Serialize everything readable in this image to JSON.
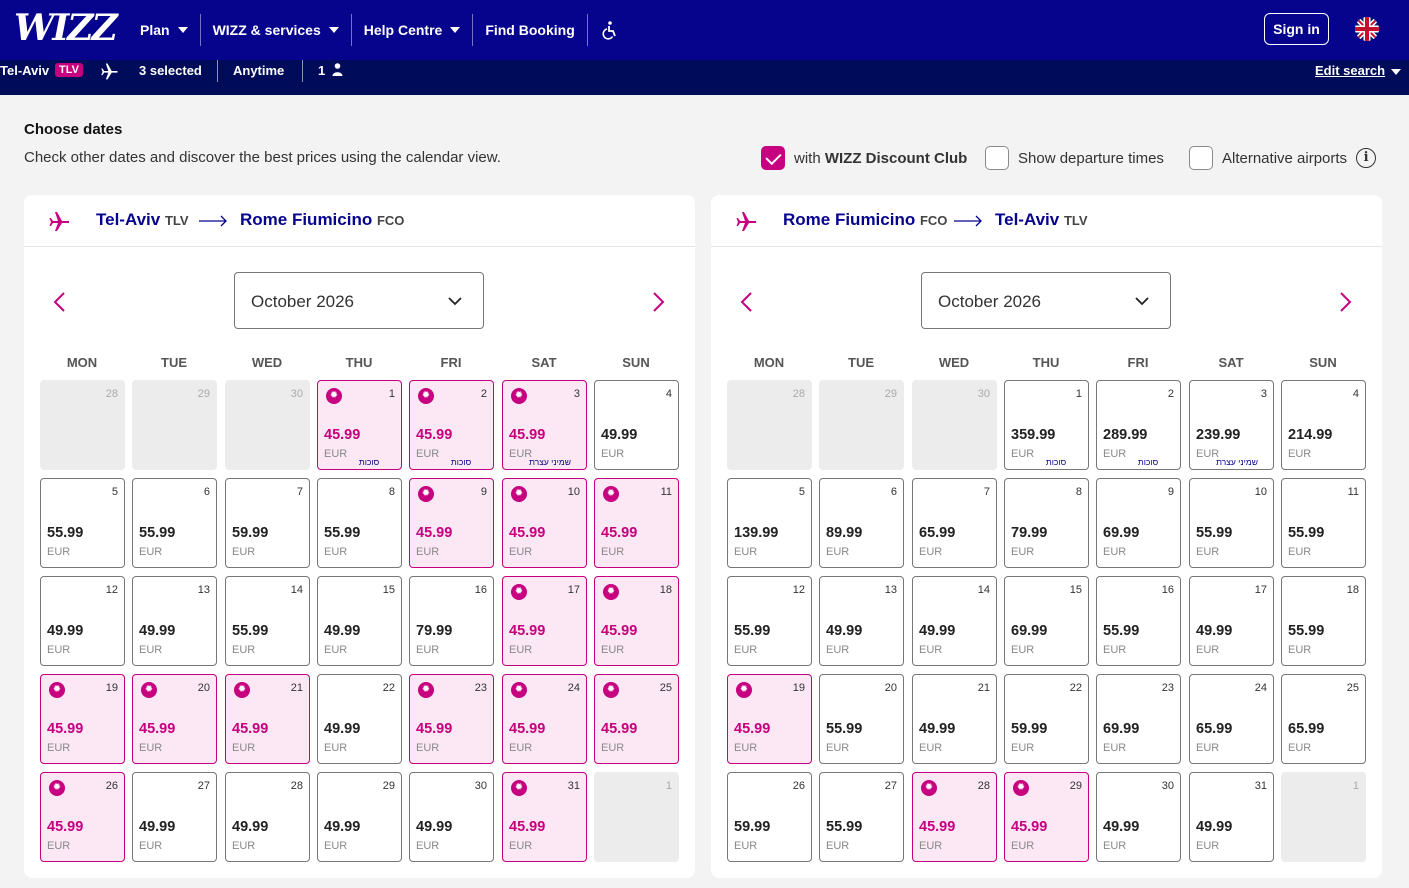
{
  "header": {
    "logo_text": "WIZZ",
    "nav": [
      {
        "label": "Plan",
        "dropdown": true
      },
      {
        "label": "WIZZ & services",
        "dropdown": true
      },
      {
        "label": "Help Centre",
        "dropdown": true
      },
      {
        "label": "Find Booking",
        "dropdown": false
      }
    ],
    "accessibility_icon": "accessibility-icon",
    "sign_in": "Sign in",
    "language_icon": "uk-flag-icon"
  },
  "search_summary": {
    "origin": "Tel-Aviv",
    "origin_code": "TLV",
    "destinations": "3 selected",
    "dates": "Anytime",
    "passengers": "1",
    "edit": "Edit search"
  },
  "choose": {
    "title": "Choose dates",
    "subtitle": "Check other dates and discover the best prices using the calendar view.",
    "options": [
      {
        "label_prefix": "with ",
        "label_strong": "WIZZ Discount Club",
        "checked": true
      },
      {
        "label_prefix": "Show departure times",
        "label_strong": "",
        "checked": false
      },
      {
        "label_prefix": "Alternative airports",
        "label_strong": "",
        "checked": false
      }
    ]
  },
  "weekdays": [
    "MON",
    "TUE",
    "WED",
    "THU",
    "FRI",
    "SAT",
    "SUN"
  ],
  "panels": [
    {
      "from": "Tel-Aviv",
      "from_code": "TLV",
      "to": "Rome Fiumicino",
      "to_code": "FCO",
      "month": "October 2026",
      "currency": "EUR",
      "cells": [
        {
          "d": "28",
          "empty": true
        },
        {
          "d": "29",
          "empty": true
        },
        {
          "d": "30",
          "empty": true
        },
        {
          "d": "1",
          "p": "45.99",
          "club": true,
          "note": "סוכות"
        },
        {
          "d": "2",
          "p": "45.99",
          "club": true,
          "note": "סוכות"
        },
        {
          "d": "3",
          "p": "45.99",
          "club": true,
          "note": "שמיני עצרת"
        },
        {
          "d": "4",
          "p": "49.99"
        },
        {
          "d": "5",
          "p": "55.99"
        },
        {
          "d": "6",
          "p": "55.99"
        },
        {
          "d": "7",
          "p": "59.99"
        },
        {
          "d": "8",
          "p": "55.99"
        },
        {
          "d": "9",
          "p": "45.99",
          "club": true
        },
        {
          "d": "10",
          "p": "45.99",
          "club": true
        },
        {
          "d": "11",
          "p": "45.99",
          "club": true
        },
        {
          "d": "12",
          "p": "49.99"
        },
        {
          "d": "13",
          "p": "49.99"
        },
        {
          "d": "14",
          "p": "55.99"
        },
        {
          "d": "15",
          "p": "49.99"
        },
        {
          "d": "16",
          "p": "79.99"
        },
        {
          "d": "17",
          "p": "45.99",
          "club": true
        },
        {
          "d": "18",
          "p": "45.99",
          "club": true
        },
        {
          "d": "19",
          "p": "45.99",
          "club": true
        },
        {
          "d": "20",
          "p": "45.99",
          "club": true
        },
        {
          "d": "21",
          "p": "45.99",
          "club": true
        },
        {
          "d": "22",
          "p": "49.99"
        },
        {
          "d": "23",
          "p": "45.99",
          "club": true
        },
        {
          "d": "24",
          "p": "45.99",
          "club": true
        },
        {
          "d": "25",
          "p": "45.99",
          "club": true
        },
        {
          "d": "26",
          "p": "45.99",
          "club": true
        },
        {
          "d": "27",
          "p": "49.99"
        },
        {
          "d": "28",
          "p": "49.99"
        },
        {
          "d": "29",
          "p": "49.99"
        },
        {
          "d": "30",
          "p": "49.99"
        },
        {
          "d": "31",
          "p": "45.99",
          "club": true
        },
        {
          "d": "1",
          "empty": true
        }
      ]
    },
    {
      "from": "Rome Fiumicino",
      "from_code": "FCO",
      "to": "Tel-Aviv",
      "to_code": "TLV",
      "month": "October 2026",
      "currency": "EUR",
      "cells": [
        {
          "d": "28",
          "empty": true
        },
        {
          "d": "29",
          "empty": true
        },
        {
          "d": "30",
          "empty": true
        },
        {
          "d": "1",
          "p": "359.99",
          "note": "סוכות"
        },
        {
          "d": "2",
          "p": "289.99",
          "note": "סוכות"
        },
        {
          "d": "3",
          "p": "239.99",
          "note": "שמיני עצרת"
        },
        {
          "d": "4",
          "p": "214.99"
        },
        {
          "d": "5",
          "p": "139.99"
        },
        {
          "d": "6",
          "p": "89.99"
        },
        {
          "d": "7",
          "p": "65.99"
        },
        {
          "d": "8",
          "p": "79.99"
        },
        {
          "d": "9",
          "p": "69.99"
        },
        {
          "d": "10",
          "p": "55.99"
        },
        {
          "d": "11",
          "p": "55.99"
        },
        {
          "d": "12",
          "p": "55.99"
        },
        {
          "d": "13",
          "p": "49.99"
        },
        {
          "d": "14",
          "p": "49.99"
        },
        {
          "d": "15",
          "p": "69.99"
        },
        {
          "d": "16",
          "p": "55.99"
        },
        {
          "d": "17",
          "p": "49.99"
        },
        {
          "d": "18",
          "p": "55.99"
        },
        {
          "d": "19",
          "p": "45.99",
          "club": true
        },
        {
          "d": "20",
          "p": "55.99"
        },
        {
          "d": "21",
          "p": "49.99"
        },
        {
          "d": "22",
          "p": "59.99"
        },
        {
          "d": "23",
          "p": "69.99"
        },
        {
          "d": "24",
          "p": "65.99"
        },
        {
          "d": "25",
          "p": "65.99"
        },
        {
          "d": "26",
          "p": "59.99"
        },
        {
          "d": "27",
          "p": "55.99"
        },
        {
          "d": "28",
          "p": "45.99",
          "club": true
        },
        {
          "d": "29",
          "p": "45.99",
          "club": true
        },
        {
          "d": "30",
          "p": "49.99"
        },
        {
          "d": "31",
          "p": "49.99"
        },
        {
          "d": "1",
          "empty": true
        }
      ]
    }
  ]
}
